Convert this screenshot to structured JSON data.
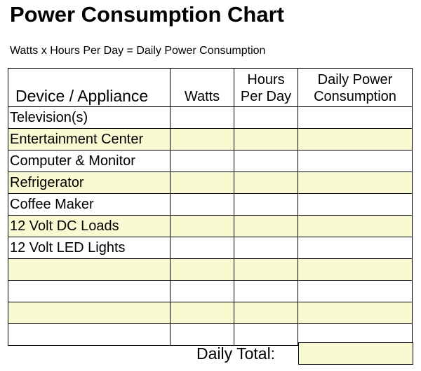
{
  "title": "Power Consumption Chart",
  "formula": "Watts x Hours Per Day = Daily Power Consumption",
  "table": {
    "headers": {
      "device": "Device / Appliance",
      "watts": "Watts",
      "hours_line1": "Hours",
      "hours_line2": "Per Day",
      "daily_line1": "Daily Power",
      "daily_line2": "Consumption"
    },
    "rows": [
      {
        "device": "Television(s)",
        "watts": "",
        "hours": "",
        "daily": ""
      },
      {
        "device": "Entertainment Center",
        "watts": "",
        "hours": "",
        "daily": ""
      },
      {
        "device": "Computer & Monitor",
        "watts": "",
        "hours": "",
        "daily": ""
      },
      {
        "device": "Refrigerator",
        "watts": "",
        "hours": "",
        "daily": ""
      },
      {
        "device": "Coffee Maker",
        "watts": "",
        "hours": "",
        "daily": ""
      },
      {
        "device": "12 Volt DC Loads",
        "watts": "",
        "hours": "",
        "daily": ""
      },
      {
        "device": "12 Volt LED Lights",
        "watts": "",
        "hours": "",
        "daily": ""
      },
      {
        "device": "",
        "watts": "",
        "hours": "",
        "daily": ""
      },
      {
        "device": "",
        "watts": "",
        "hours": "",
        "daily": ""
      },
      {
        "device": "",
        "watts": "",
        "hours": "",
        "daily": ""
      },
      {
        "device": "",
        "watts": "",
        "hours": "",
        "daily": ""
      }
    ]
  },
  "total": {
    "label": "Daily Total:",
    "value": ""
  },
  "colors": {
    "shaded_row": "#fafad2",
    "border": "#000000"
  }
}
